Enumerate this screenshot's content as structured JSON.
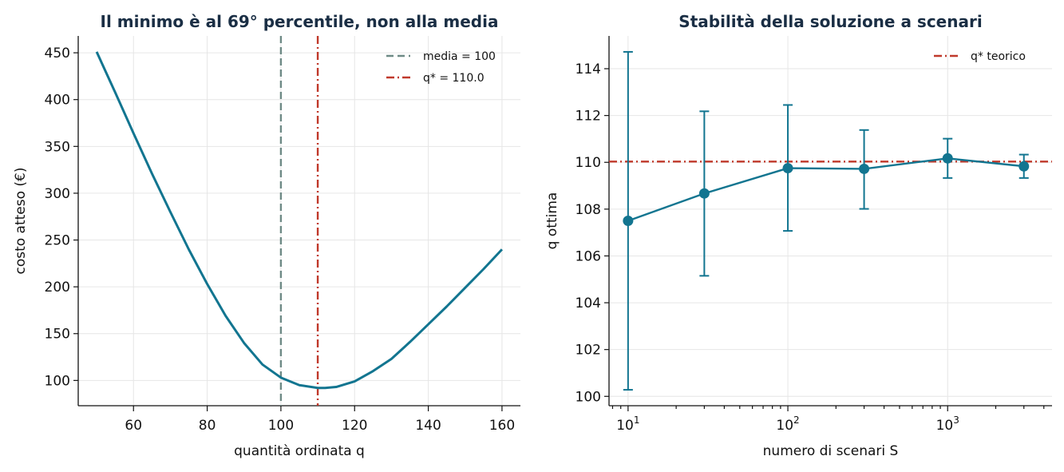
{
  "chart_data": [
    {
      "type": "line",
      "title": "Il minimo è al 69° percentile, non alla media",
      "xlabel": "quantità ordinata q",
      "ylabel": "costo atteso (€)",
      "xlim": [
        45,
        165
      ],
      "ylim": [
        73,
        468
      ],
      "xticks": [
        60,
        80,
        100,
        120,
        140,
        160
      ],
      "yticks": [
        100,
        150,
        200,
        250,
        300,
        350,
        400,
        450
      ],
      "grid": true,
      "legend_position": "top-right",
      "series": [
        {
          "color": "#127590",
          "x": [
            50,
            55,
            60,
            65,
            70,
            75,
            80,
            85,
            90,
            95,
            100,
            105,
            110,
            112,
            115,
            120,
            125,
            130,
            135,
            140,
            145,
            150,
            155,
            160
          ],
          "y": [
            451,
            408,
            364,
            321,
            280,
            240,
            203,
            169,
            140,
            117,
            103,
            95,
            92,
            92,
            93,
            99,
            110,
            123,
            141,
            160,
            179,
            199,
            219,
            240
          ]
        }
      ],
      "reference_lines": [
        {
          "label": "media = 100",
          "x": 100,
          "style": "dashed",
          "color": "#6e8a86"
        },
        {
          "label": "q* = 110.0",
          "x": 110,
          "style": "dashdot",
          "color": "#c0392b"
        }
      ]
    },
    {
      "type": "line",
      "title": "Stabilità della soluzione a scenari",
      "xlabel": "numero di scenari S",
      "ylabel": "q ottima",
      "xscale": "log",
      "xlim": [
        7.6,
        4500
      ],
      "ylim": [
        99.6,
        115.4
      ],
      "xticks": [
        "10^1",
        "10^2",
        "10^3"
      ],
      "yticks": [
        100,
        102,
        104,
        106,
        108,
        110,
        112,
        114
      ],
      "grid": true,
      "legend_position": "top-right",
      "series": [
        {
          "color": "#127590",
          "x": [
            10,
            30,
            100,
            300,
            1000,
            3000
          ],
          "y": [
            107.5,
            108.67,
            109.75,
            109.72,
            110.17,
            109.83
          ],
          "yerr_low": [
            100.28,
            105.15,
            107.07,
            108.01,
            109.33,
            109.33
          ],
          "yerr_high": [
            114.72,
            112.18,
            112.45,
            111.38,
            111.01,
            110.33
          ]
        }
      ],
      "reference_lines": [
        {
          "label": "q* teorico",
          "y": 110.03,
          "style": "dashdot",
          "color": "#c0392b"
        }
      ]
    }
  ]
}
